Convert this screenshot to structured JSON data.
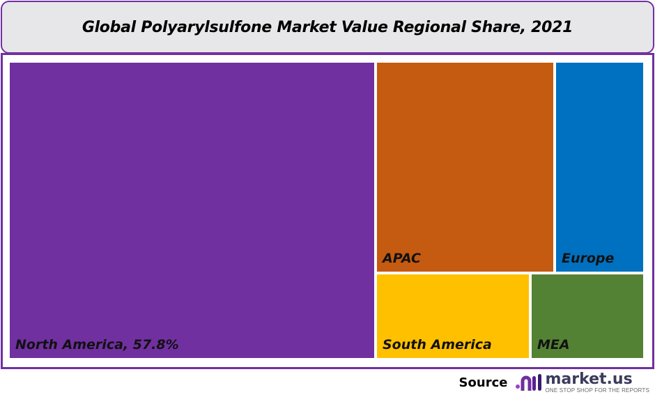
{
  "chart_data": {
    "type": "treemap",
    "title": "Global Polyarylsulfone Market Value Regional Share, 2021",
    "categories": [
      "North America",
      "APAC",
      "Europe",
      "South America",
      "MEA"
    ],
    "labels": [
      "North America, 57.8%",
      "APAC",
      "Europe",
      "South America",
      "MEA"
    ],
    "values_percent": [
      57.8,
      null,
      null,
      null,
      null
    ],
    "colors": [
      "#7030a0",
      "#c55a11",
      "#0070c0",
      "#ffc000",
      "#548235"
    ]
  },
  "footer": {
    "source_label": "Source",
    "logo_text": "market.us",
    "logo_tagline": "ONE STOP SHOP FOR THE REPORTS"
  }
}
